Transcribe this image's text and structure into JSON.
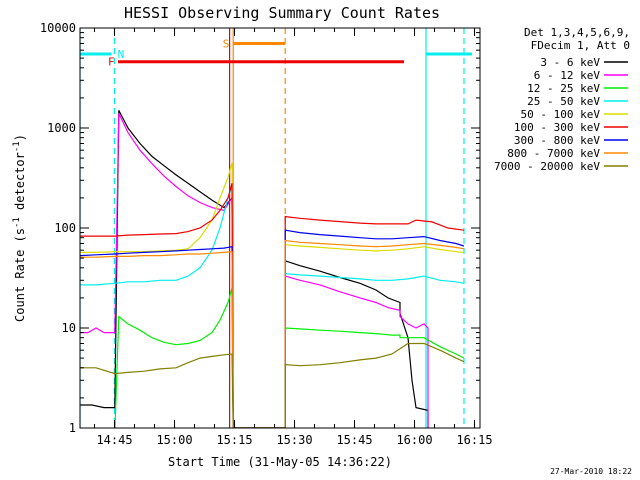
{
  "colors": {
    "black": "#000000",
    "magenta": "#ff00ff",
    "green": "#00ee00",
    "cyan": "#00eeee",
    "yellow": "#dddd00",
    "red": "#ee0000",
    "blue": "#0000ee",
    "orange": "#ff8800",
    "olive": "#808000"
  },
  "chart_data": {
    "type": "line",
    "title": "HESSI Observing Summary Count Rates",
    "xlabel": "Start Time (31-May-05 14:36:22)",
    "ylabel_main": "Count Rate (s",
    "ylabel_sup": "-1",
    "ylabel_mid": " detector",
    "ylabel_sup2": "-1",
    "ylabel_end": ")",
    "y_scale": "log",
    "ylim": [
      1,
      10000
    ],
    "xlim_minutes": [
      0,
      100
    ],
    "x_ticks": [
      {
        "label": "14:45",
        "min": 8.63
      },
      {
        "label": "15:00",
        "min": 23.63
      },
      {
        "label": "15:15",
        "min": 38.63
      },
      {
        "label": "15:30",
        "min": 53.63
      },
      {
        "label": "15:45",
        "min": 68.63
      },
      {
        "label": "16:00",
        "min": 83.63
      },
      {
        "label": "16:15",
        "min": 98.63
      }
    ],
    "y_ticks": [
      {
        "label": "1",
        "value": 1
      },
      {
        "label": "10",
        "value": 10
      },
      {
        "label": "100",
        "value": 100
      },
      {
        "label": "1000",
        "value": 1000
      },
      {
        "label": "10000",
        "value": 10000
      }
    ],
    "legend_header": [
      "Det 1,3,4,5,6,9,",
      "FDecim 1, Att 0"
    ],
    "legend_placement": "right",
    "footer_date": "27-Mar-2010 18:22",
    "series": [
      {
        "name": "3 - 6 keV",
        "color": "#000000",
        "points": [
          [
            0,
            1.7
          ],
          [
            3,
            1.7
          ],
          [
            6,
            1.6
          ],
          [
            8.7,
            1.6
          ],
          [
            9.7,
            1500
          ],
          [
            12,
            1000
          ],
          [
            15,
            700
          ],
          [
            18,
            520
          ],
          [
            21,
            420
          ],
          [
            24,
            340
          ],
          [
            27,
            280
          ],
          [
            30,
            230
          ],
          [
            33,
            190
          ],
          [
            36,
            160
          ],
          [
            38,
            200
          ],
          [
            38.3,
            1
          ],
          [
            51.3,
            1
          ],
          [
            51.3,
            47
          ],
          [
            55,
            42
          ],
          [
            60,
            37
          ],
          [
            65,
            32
          ],
          [
            70,
            28
          ],
          [
            74,
            24
          ],
          [
            77,
            20
          ],
          [
            80,
            18
          ],
          [
            80,
            14
          ],
          [
            82,
            8
          ],
          [
            83,
            3
          ],
          [
            84,
            1.6
          ],
          [
            87,
            1.5
          ],
          [
            87,
            0.9
          ]
        ]
      },
      {
        "name": "6 - 12 keV",
        "color": "#ff00ff",
        "points": [
          [
            0,
            9
          ],
          [
            2,
            9
          ],
          [
            4,
            10
          ],
          [
            6,
            9
          ],
          [
            8.7,
            9
          ],
          [
            9.7,
            1400
          ],
          [
            12,
            900
          ],
          [
            15,
            600
          ],
          [
            18,
            440
          ],
          [
            21,
            330
          ],
          [
            24,
            260
          ],
          [
            27,
            210
          ],
          [
            30,
            180
          ],
          [
            33,
            160
          ],
          [
            36,
            150
          ],
          [
            38,
            200
          ],
          [
            38.3,
            1
          ],
          [
            51.3,
            1
          ],
          [
            51.3,
            33
          ],
          [
            55,
            30
          ],
          [
            60,
            27
          ],
          [
            65,
            23
          ],
          [
            70,
            20
          ],
          [
            74,
            18
          ],
          [
            77,
            16
          ],
          [
            80,
            15
          ],
          [
            80,
            13
          ],
          [
            82,
            11
          ],
          [
            84,
            10
          ],
          [
            86,
            11
          ],
          [
            87,
            10
          ],
          [
            87,
            0.9
          ]
        ]
      },
      {
        "name": "12 - 25 keV",
        "color": "#00ee00",
        "points": [
          [
            0,
            0.9
          ],
          [
            8.7,
            0.9
          ],
          [
            9.7,
            13
          ],
          [
            12,
            11
          ],
          [
            15,
            9.5
          ],
          [
            18,
            8
          ],
          [
            21,
            7.2
          ],
          [
            24,
            6.8
          ],
          [
            27,
            7
          ],
          [
            30,
            7.5
          ],
          [
            33,
            9
          ],
          [
            35,
            12
          ],
          [
            37,
            18
          ],
          [
            38,
            25
          ],
          [
            38.3,
            1
          ],
          [
            51.3,
            1
          ],
          [
            51.3,
            10
          ],
          [
            55,
            9.8
          ],
          [
            60,
            9.5
          ],
          [
            65,
            9.3
          ],
          [
            70,
            9
          ],
          [
            74,
            8.8
          ],
          [
            78,
            8.5
          ],
          [
            80,
            8.5
          ],
          [
            80,
            8
          ],
          [
            83,
            8
          ],
          [
            86,
            8
          ],
          [
            90,
            6.5
          ],
          [
            94,
            5.5
          ],
          [
            96,
            5
          ]
        ]
      },
      {
        "name": "25 - 50 keV",
        "color": "#00eeee",
        "points": [
          [
            0,
            27
          ],
          [
            4,
            27
          ],
          [
            8.7,
            28
          ],
          [
            12,
            29
          ],
          [
            16,
            29
          ],
          [
            20,
            30
          ],
          [
            24,
            30
          ],
          [
            27,
            33
          ],
          [
            30,
            40
          ],
          [
            33,
            60
          ],
          [
            35,
            100
          ],
          [
            37,
            200
          ],
          [
            38,
            260
          ],
          [
            38.3,
            1
          ],
          [
            51.3,
            1
          ],
          [
            51.3,
            35
          ],
          [
            55,
            34
          ],
          [
            60,
            33
          ],
          [
            65,
            32
          ],
          [
            70,
            31
          ],
          [
            74,
            30
          ],
          [
            78,
            30
          ],
          [
            82,
            31
          ],
          [
            86,
            33
          ],
          [
            90,
            30
          ],
          [
            94,
            29
          ],
          [
            96,
            28
          ]
        ]
      },
      {
        "name": "50 - 100 keV",
        "color": "#dddd00",
        "points": [
          [
            0,
            57
          ],
          [
            4,
            57
          ],
          [
            8.7,
            58
          ],
          [
            12,
            58
          ],
          [
            16,
            58
          ],
          [
            20,
            59
          ],
          [
            24,
            60
          ],
          [
            27,
            62
          ],
          [
            30,
            80
          ],
          [
            33,
            120
          ],
          [
            35,
            200
          ],
          [
            37,
            320
          ],
          [
            38,
            450
          ],
          [
            38.3,
            1
          ],
          [
            51.3,
            1
          ],
          [
            51.3,
            68
          ],
          [
            55,
            66
          ],
          [
            60,
            64
          ],
          [
            65,
            62
          ],
          [
            70,
            60
          ],
          [
            74,
            59
          ],
          [
            78,
            60
          ],
          [
            82,
            62
          ],
          [
            86,
            65
          ],
          [
            90,
            61
          ],
          [
            94,
            58
          ],
          [
            96,
            57
          ]
        ]
      },
      {
        "name": "100 - 300 keV",
        "color": "#ee0000",
        "points": [
          [
            0,
            83
          ],
          [
            4,
            83
          ],
          [
            8.7,
            83
          ],
          [
            12,
            85
          ],
          [
            16,
            86
          ],
          [
            20,
            87
          ],
          [
            24,
            88
          ],
          [
            27,
            92
          ],
          [
            30,
            100
          ],
          [
            33,
            120
          ],
          [
            35,
            150
          ],
          [
            37,
            200
          ],
          [
            38,
            280
          ],
          [
            38.3,
            1
          ],
          [
            51.3,
            1
          ],
          [
            51.3,
            130
          ],
          [
            55,
            125
          ],
          [
            60,
            120
          ],
          [
            65,
            116
          ],
          [
            70,
            112
          ],
          [
            74,
            110
          ],
          [
            78,
            110
          ],
          [
            82,
            110
          ],
          [
            84,
            120
          ],
          [
            88,
            115
          ],
          [
            92,
            100
          ],
          [
            96,
            95
          ]
        ]
      },
      {
        "name": "300 - 800 keV",
        "color": "#0000ee",
        "points": [
          [
            0,
            53
          ],
          [
            4,
            54
          ],
          [
            8.7,
            55
          ],
          [
            12,
            56
          ],
          [
            16,
            57
          ],
          [
            20,
            58
          ],
          [
            24,
            59
          ],
          [
            27,
            60
          ],
          [
            30,
            61
          ],
          [
            33,
            62
          ],
          [
            36,
            63
          ],
          [
            38,
            65
          ],
          [
            38.3,
            1
          ],
          [
            51.3,
            1
          ],
          [
            51.3,
            95
          ],
          [
            55,
            90
          ],
          [
            60,
            86
          ],
          [
            65,
            83
          ],
          [
            70,
            80
          ],
          [
            74,
            78
          ],
          [
            78,
            78
          ],
          [
            82,
            80
          ],
          [
            86,
            82
          ],
          [
            90,
            75
          ],
          [
            94,
            70
          ],
          [
            96,
            66
          ]
        ]
      },
      {
        "name": "800 - 7000 keV",
        "color": "#ff8800",
        "points": [
          [
            0,
            51
          ],
          [
            4,
            51
          ],
          [
            8.7,
            52
          ],
          [
            12,
            52
          ],
          [
            16,
            53
          ],
          [
            20,
            53
          ],
          [
            24,
            54
          ],
          [
            27,
            55
          ],
          [
            30,
            55
          ],
          [
            33,
            56
          ],
          [
            36,
            57
          ],
          [
            38,
            58
          ],
          [
            38.3,
            1
          ],
          [
            51.3,
            1
          ],
          [
            51.3,
            75
          ],
          [
            55,
            72
          ],
          [
            60,
            70
          ],
          [
            65,
            68
          ],
          [
            70,
            66
          ],
          [
            74,
            65
          ],
          [
            78,
            66
          ],
          [
            82,
            68
          ],
          [
            86,
            70
          ],
          [
            90,
            67
          ],
          [
            94,
            64
          ],
          [
            96,
            62
          ]
        ]
      },
      {
        "name": "7000 - 20000 keV",
        "color": "#808000",
        "points": [
          [
            0,
            4
          ],
          [
            4,
            4
          ],
          [
            8.7,
            3.5
          ],
          [
            12,
            3.6
          ],
          [
            16,
            3.7
          ],
          [
            20,
            3.9
          ],
          [
            24,
            4
          ],
          [
            27,
            4.5
          ],
          [
            30,
            5
          ],
          [
            33,
            5.2
          ],
          [
            36,
            5.4
          ],
          [
            38,
            5.5
          ],
          [
            38.3,
            1
          ],
          [
            51.3,
            1
          ],
          [
            51.3,
            4.3
          ],
          [
            55,
            4.2
          ],
          [
            60,
            4.3
          ],
          [
            65,
            4.5
          ],
          [
            70,
            4.8
          ],
          [
            74,
            5
          ],
          [
            78,
            5.5
          ],
          [
            82,
            7
          ],
          [
            86,
            7
          ],
          [
            90,
            6
          ],
          [
            94,
            5
          ],
          [
            96,
            4.6
          ]
        ]
      }
    ],
    "flags": [
      {
        "label": "N",
        "color": "#00eeee",
        "level": 5500,
        "segments": [
          [
            0,
            7.9
          ],
          [
            86.5,
            98
          ]
        ]
      },
      {
        "label": "S",
        "color": "#ff8800",
        "level": 7000,
        "segments": [
          [
            38.2,
            51.3
          ]
        ]
      },
      {
        "label": "F",
        "color": "#ee0000",
        "level": 4600,
        "segments": [
          [
            9.5,
            81
          ]
        ]
      }
    ],
    "vlines": [
      {
        "min": 0,
        "color": "#00eeee",
        "style": "solid"
      },
      {
        "min": 8.6,
        "color": "#00eeee",
        "style": "dashed"
      },
      {
        "min": 86.5,
        "color": "#00eeee",
        "style": "solid"
      },
      {
        "min": 96,
        "color": "#00eeee",
        "style": "dashed"
      },
      {
        "min": 37.4,
        "color": "#ee0000",
        "style": "solid"
      },
      {
        "min": 38.3,
        "color": "#ff8800",
        "style": "solid"
      },
      {
        "min": 51.3,
        "color": "#ff8800",
        "style": "dashed"
      }
    ]
  }
}
